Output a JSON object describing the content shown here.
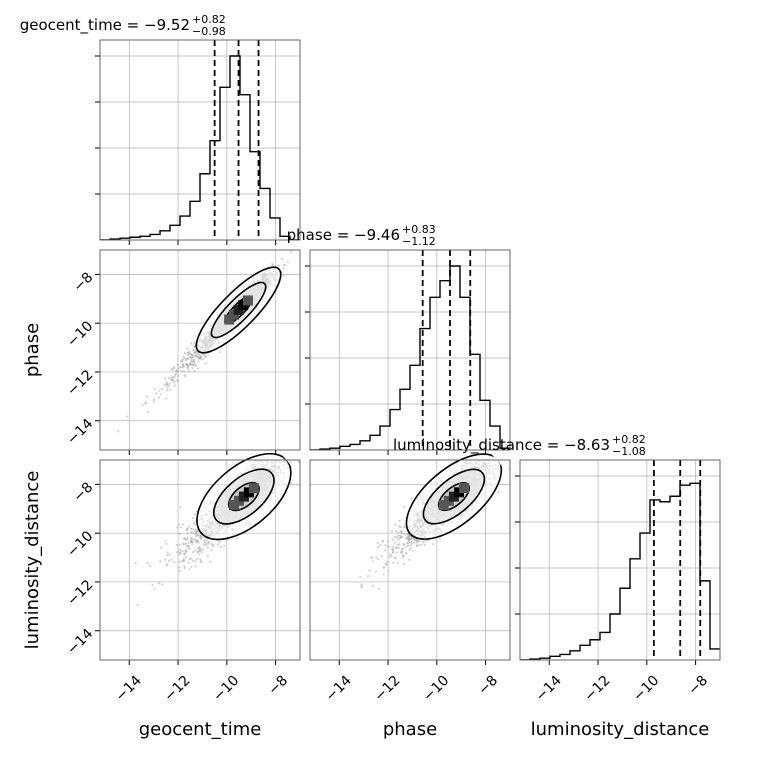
{
  "chart_data": {
    "type": "corner",
    "parameters": [
      "geocent_time",
      "phase",
      "luminosity_distance"
    ],
    "range": [
      -15.2,
      -7.0
    ],
    "ticks": [
      -14,
      -12,
      -10,
      -8
    ],
    "tick_labels": [
      "−14",
      "−12",
      "−10",
      "−8"
    ],
    "grid": true,
    "marginals": [
      {
        "parameter": "geocent_time",
        "title": {
          "main": "geocent_time = −9.52",
          "sup": "+0.82",
          "sub": "−0.98"
        },
        "median": -9.52,
        "quantiles": [
          -10.5,
          -9.52,
          -8.7
        ],
        "hist_edges": [
          -15.2,
          -14.79,
          -14.38,
          -13.97,
          -13.56,
          -13.15,
          -12.74,
          -12.33,
          -11.92,
          -11.51,
          -11.1,
          -10.69,
          -10.28,
          -9.87,
          -9.46,
          -9.05,
          -8.64,
          -8.23,
          -7.82,
          -7.41,
          -7.0
        ],
        "hist_heights": [
          0,
          0.005,
          0.01,
          0.015,
          0.02,
          0.03,
          0.05,
          0.08,
          0.13,
          0.21,
          0.36,
          0.54,
          0.83,
          1.0,
          0.79,
          0.48,
          0.28,
          0.12,
          0.02,
          0
        ]
      },
      {
        "parameter": "phase",
        "title": {
          "main": "phase = −9.46",
          "sup": "+0.83",
          "sub": "−1.12"
        },
        "median": -9.46,
        "quantiles": [
          -10.58,
          -9.46,
          -8.63
        ],
        "hist_edges": [
          -15.2,
          -14.79,
          -14.38,
          -13.97,
          -13.56,
          -13.15,
          -12.74,
          -12.33,
          -11.92,
          -11.51,
          -11.1,
          -10.69,
          -10.28,
          -9.87,
          -9.46,
          -9.05,
          -8.64,
          -8.23,
          -7.82,
          -7.41,
          -7.0
        ],
        "hist_heights": [
          0,
          0.005,
          0.01,
          0.02,
          0.03,
          0.05,
          0.08,
          0.13,
          0.22,
          0.33,
          0.46,
          0.66,
          0.83,
          0.92,
          1.0,
          0.83,
          0.52,
          0.27,
          0.13,
          0.01
        ]
      },
      {
        "parameter": "luminosity_distance",
        "title": {
          "main": "luminosity_distance = −8.63",
          "sup": "+0.82",
          "sub": "−1.08"
        },
        "median": -8.63,
        "quantiles": [
          -9.71,
          -8.63,
          -7.81
        ],
        "hist_edges": [
          -15.2,
          -14.79,
          -14.38,
          -13.97,
          -13.56,
          -13.15,
          -12.74,
          -12.33,
          -11.92,
          -11.51,
          -11.1,
          -10.69,
          -10.28,
          -9.87,
          -9.46,
          -9.05,
          -8.64,
          -8.23,
          -7.82,
          -7.41,
          -7.0
        ],
        "hist_heights": [
          0,
          0.005,
          0.01,
          0.02,
          0.03,
          0.05,
          0.08,
          0.11,
          0.15,
          0.25,
          0.39,
          0.55,
          0.69,
          0.87,
          0.86,
          0.89,
          0.95,
          0.96,
          0.43,
          0.06
        ]
      }
    ],
    "pairs": [
      {
        "x": "geocent_time",
        "y": "phase",
        "center": [
          -9.52,
          -9.46
        ],
        "sigma": [
          1.05,
          1.1
        ],
        "correlation": 0.97
      },
      {
        "x": "geocent_time",
        "y": "luminosity_distance",
        "center": [
          -9.3,
          -8.5
        ],
        "sigma": [
          1.05,
          1.05
        ],
        "correlation": 0.85
      },
      {
        "x": "phase",
        "y": "luminosity_distance",
        "center": [
          -9.3,
          -8.5
        ],
        "sigma": [
          1.1,
          1.05
        ],
        "correlation": 0.88
      }
    ],
    "colors": {
      "line": "#000000",
      "quantile": "#000000",
      "points": "#9a9a9a",
      "grid": "#b0b0b0"
    }
  }
}
